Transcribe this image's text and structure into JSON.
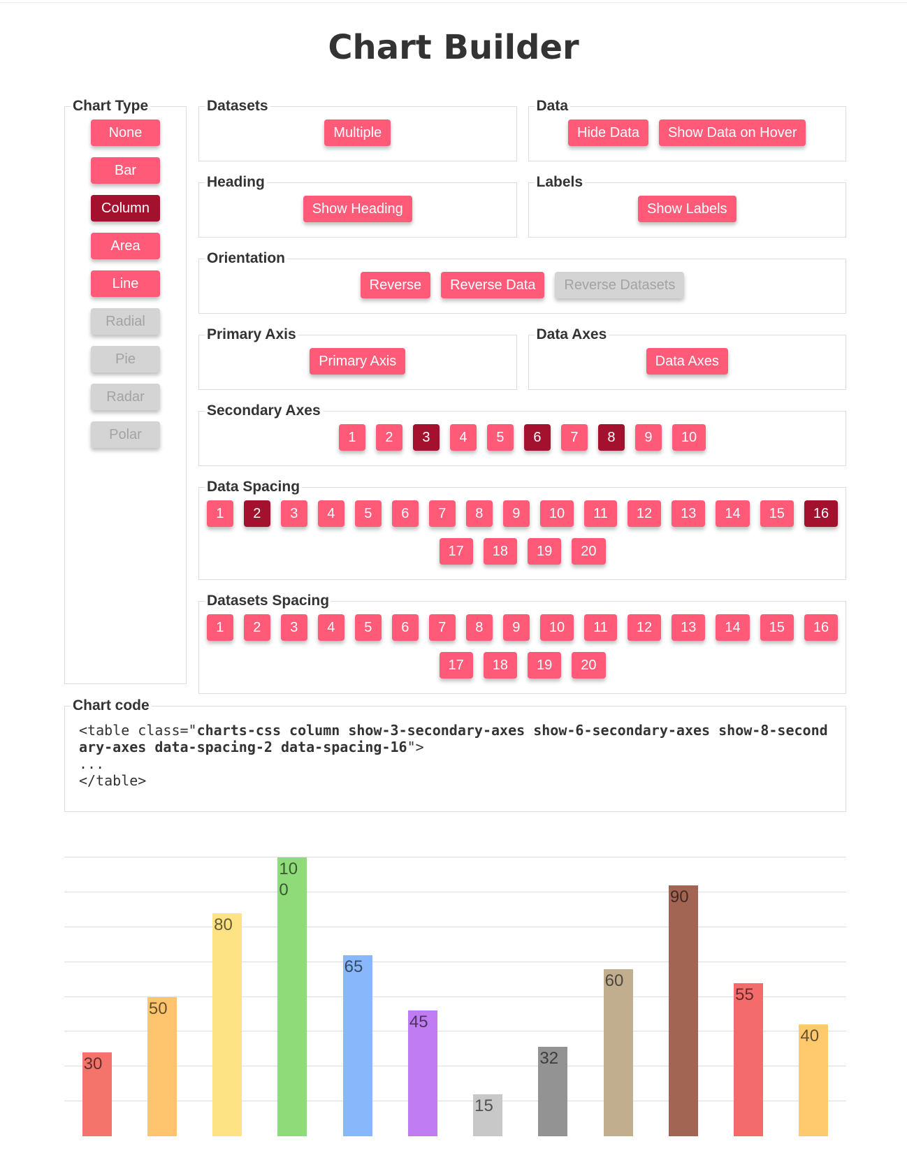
{
  "title": "Chart Builder",
  "chart_type": {
    "legend": "Chart Type",
    "buttons": [
      {
        "label": "None",
        "state": "normal"
      },
      {
        "label": "Bar",
        "state": "normal"
      },
      {
        "label": "Column",
        "state": "active"
      },
      {
        "label": "Area",
        "state": "normal"
      },
      {
        "label": "Line",
        "state": "normal"
      },
      {
        "label": "Radial",
        "state": "disabled"
      },
      {
        "label": "Pie",
        "state": "disabled"
      },
      {
        "label": "Radar",
        "state": "disabled"
      },
      {
        "label": "Polar",
        "state": "disabled"
      }
    ]
  },
  "panels": [
    [
      {
        "legend": "Datasets",
        "buttons": [
          {
            "label": "Multiple",
            "state": "normal"
          }
        ]
      },
      {
        "legend": "Data",
        "buttons": [
          {
            "label": "Hide Data",
            "state": "normal"
          },
          {
            "label": "Show Data on Hover",
            "state": "normal"
          }
        ]
      }
    ],
    [
      {
        "legend": "Heading",
        "buttons": [
          {
            "label": "Show Heading",
            "state": "normal"
          }
        ]
      },
      {
        "legend": "Labels",
        "buttons": [
          {
            "label": "Show Labels",
            "state": "normal"
          }
        ]
      }
    ],
    [
      {
        "legend": "Orientation",
        "buttons": [
          {
            "label": "Reverse",
            "state": "normal"
          },
          {
            "label": "Reverse Data",
            "state": "normal"
          },
          {
            "label": "Reverse Datasets",
            "state": "disabled"
          }
        ]
      }
    ],
    [
      {
        "legend": "Primary Axis",
        "buttons": [
          {
            "label": "Primary Axis",
            "state": "normal"
          }
        ]
      },
      {
        "legend": "Data Axes",
        "buttons": [
          {
            "label": "Data Axes",
            "state": "normal"
          }
        ]
      }
    ],
    [
      {
        "legend": "Secondary Axes",
        "buttons": [
          {
            "label": "1",
            "state": "normal"
          },
          {
            "label": "2",
            "state": "normal"
          },
          {
            "label": "3",
            "state": "active"
          },
          {
            "label": "4",
            "state": "normal"
          },
          {
            "label": "5",
            "state": "normal"
          },
          {
            "label": "6",
            "state": "active"
          },
          {
            "label": "7",
            "state": "normal"
          },
          {
            "label": "8",
            "state": "active"
          },
          {
            "label": "9",
            "state": "normal"
          },
          {
            "label": "10",
            "state": "normal"
          }
        ]
      }
    ],
    [
      {
        "legend": "Data Spacing",
        "buttons": [
          {
            "label": "1",
            "state": "normal"
          },
          {
            "label": "2",
            "state": "active"
          },
          {
            "label": "3",
            "state": "normal"
          },
          {
            "label": "4",
            "state": "normal"
          },
          {
            "label": "5",
            "state": "normal"
          },
          {
            "label": "6",
            "state": "normal"
          },
          {
            "label": "7",
            "state": "normal"
          },
          {
            "label": "8",
            "state": "normal"
          },
          {
            "label": "9",
            "state": "normal"
          },
          {
            "label": "10",
            "state": "normal"
          },
          {
            "label": "11",
            "state": "normal"
          },
          {
            "label": "12",
            "state": "normal"
          },
          {
            "label": "13",
            "state": "normal"
          },
          {
            "label": "14",
            "state": "normal"
          },
          {
            "label": "15",
            "state": "normal"
          },
          {
            "label": "16",
            "state": "active"
          },
          {
            "label": "17",
            "state": "normal"
          },
          {
            "label": "18",
            "state": "normal"
          },
          {
            "label": "19",
            "state": "normal"
          },
          {
            "label": "20",
            "state": "normal"
          }
        ]
      }
    ],
    [
      {
        "legend": "Datasets Spacing",
        "buttons": [
          {
            "label": "1",
            "state": "normal"
          },
          {
            "label": "2",
            "state": "normal"
          },
          {
            "label": "3",
            "state": "normal"
          },
          {
            "label": "4",
            "state": "normal"
          },
          {
            "label": "5",
            "state": "normal"
          },
          {
            "label": "6",
            "state": "normal"
          },
          {
            "label": "7",
            "state": "normal"
          },
          {
            "label": "8",
            "state": "normal"
          },
          {
            "label": "9",
            "state": "normal"
          },
          {
            "label": "10",
            "state": "normal"
          },
          {
            "label": "11",
            "state": "normal"
          },
          {
            "label": "12",
            "state": "normal"
          },
          {
            "label": "13",
            "state": "normal"
          },
          {
            "label": "14",
            "state": "normal"
          },
          {
            "label": "15",
            "state": "normal"
          },
          {
            "label": "16",
            "state": "normal"
          },
          {
            "label": "17",
            "state": "normal"
          },
          {
            "label": "18",
            "state": "normal"
          },
          {
            "label": "19",
            "state": "normal"
          },
          {
            "label": "20",
            "state": "normal"
          }
        ]
      }
    ]
  ],
  "code": {
    "legend": "Chart code",
    "prefix": "<table class=\"",
    "classes": "charts-css column show-3-secondary-axes show-6-secondary-axes show-8-secondary-axes data-spacing-2 data-spacing-16",
    "suffix": "\">",
    "lines": [
      "...",
      "</table>"
    ]
  },
  "chart_data": {
    "type": "bar",
    "values": [
      30,
      50,
      80,
      100,
      65,
      45,
      15,
      32,
      60,
      90,
      55,
      40
    ],
    "colors": [
      "#f4736b",
      "#ffc46d",
      "#fde384",
      "#8fdb7a",
      "#88b7fb",
      "#c07cf2",
      "#c8c8c8",
      "#939393",
      "#c0ae8f",
      "#a36553",
      "#f46b6b",
      "#ffc96e"
    ],
    "ylim": [
      0,
      100
    ],
    "yticks": [
      12.5,
      25,
      37.5,
      50,
      62.5,
      75,
      87.5,
      100
    ],
    "grid": true
  }
}
